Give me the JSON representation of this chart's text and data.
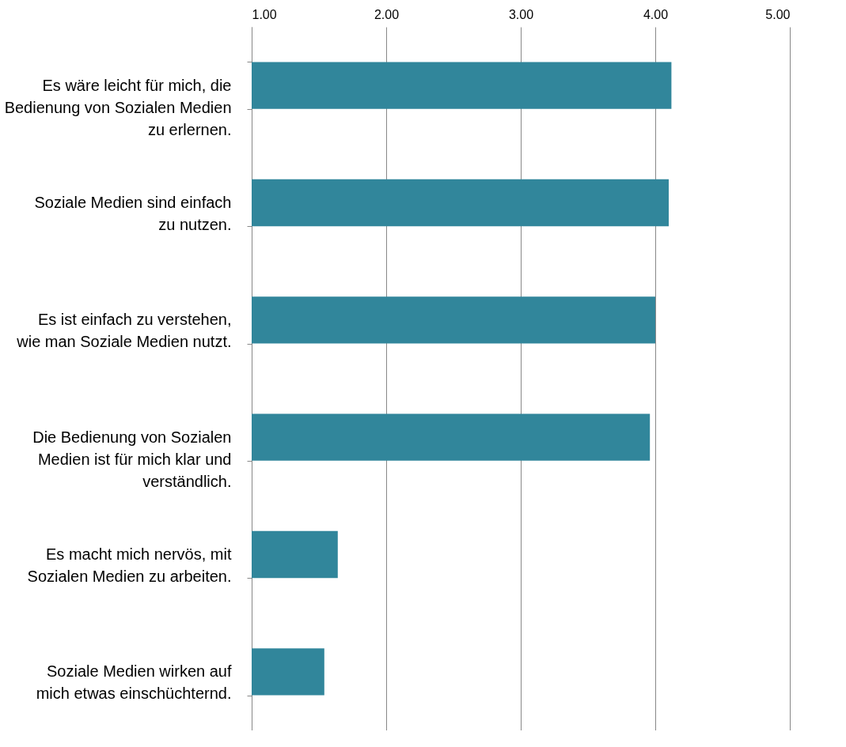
{
  "chart_data": {
    "type": "bar",
    "orientation": "horizontal",
    "categories": [
      "Es wäre leicht für mich, die Bedienung von Sozialen Medien zu erlernen.",
      "Soziale Medien sind einfach zu nutzen.",
      "Es ist einfach zu verstehen, wie man Soziale Medien nutzt.",
      "Die Bedienung von Sozialen Medien ist für mich klar und verständlich.",
      "Es macht mich nervös, mit Sozialen Medien zu arbeiten.",
      "Soziale Medien wirken auf mich etwas einschüchternd."
    ],
    "values": [
      4.12,
      4.1,
      4.0,
      3.96,
      1.64,
      1.54
    ],
    "color": "#31869b",
    "xlim": [
      1,
      5
    ],
    "xticks": [
      {
        "value": 1,
        "label": "1.00"
      },
      {
        "value": 2,
        "label": "2.00"
      },
      {
        "value": 3,
        "label": "3.00"
      },
      {
        "value": 4,
        "label": "4.00"
      },
      {
        "value": 5,
        "label": "5.00"
      }
    ],
    "grid": "x"
  }
}
